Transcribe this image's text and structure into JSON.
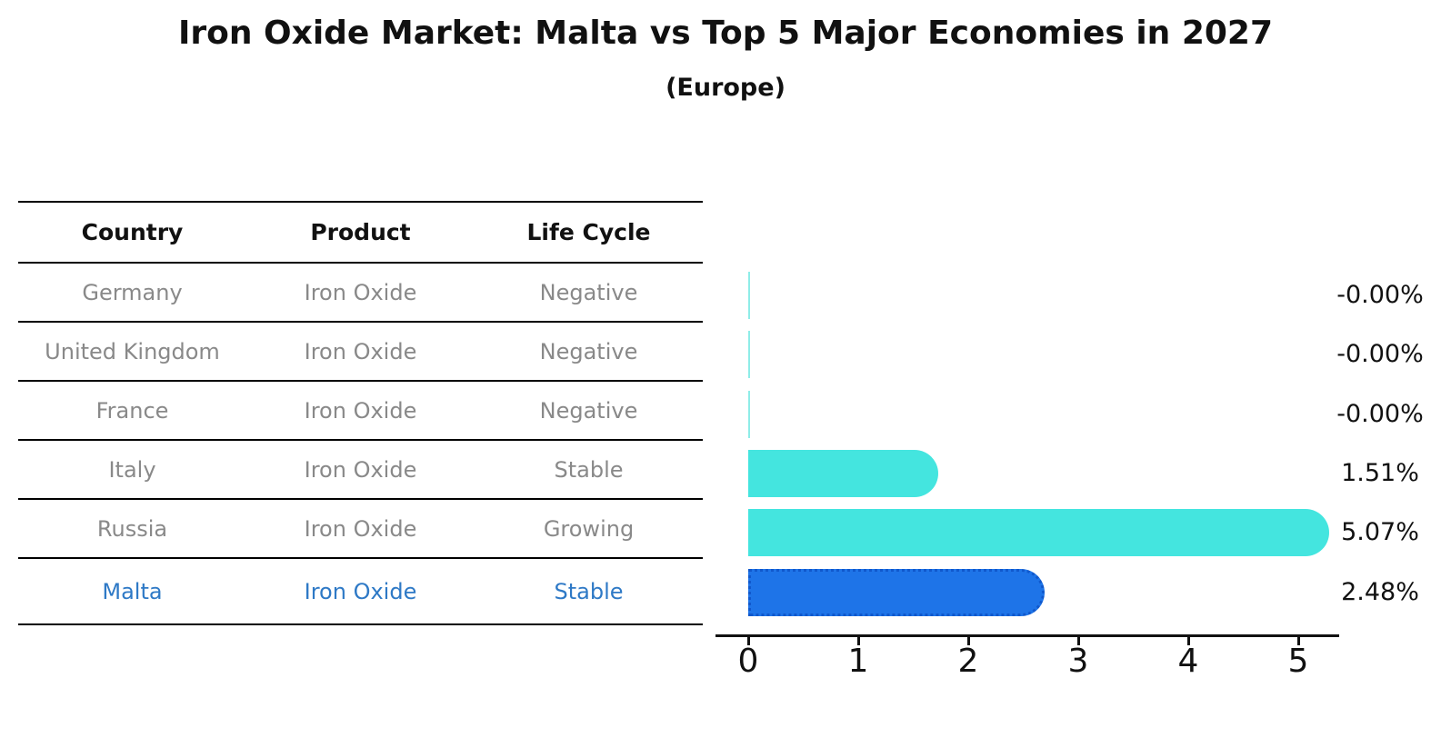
{
  "title": "Iron Oxide Market: Malta vs Top 5 Major Economies in 2027",
  "subtitle": "(Europe)",
  "table": {
    "headers": [
      "Country",
      "Product",
      "Life Cycle"
    ],
    "rows": [
      {
        "country": "Germany",
        "product": "Iron Oxide",
        "life_cycle": "Negative",
        "highlight": false
      },
      {
        "country": "United Kingdom",
        "product": "Iron Oxide",
        "life_cycle": "Negative",
        "highlight": false
      },
      {
        "country": "France",
        "product": "Iron Oxide",
        "life_cycle": "Negative",
        "highlight": false
      },
      {
        "country": "Italy",
        "product": "Iron Oxide",
        "life_cycle": "Stable",
        "highlight": false
      },
      {
        "country": "Russia",
        "product": "Iron Oxide",
        "life_cycle": "Growing",
        "highlight": false
      },
      {
        "country": "Malta",
        "product": "Iron Oxide",
        "life_cycle": "Stable",
        "highlight": true
      }
    ]
  },
  "chart_data": {
    "type": "bar",
    "orientation": "horizontal",
    "title": "Iron Oxide Market: Malta vs Top 5 Major Economies in 2027",
    "subtitle": "(Europe)",
    "categories": [
      "Germany",
      "United Kingdom",
      "France",
      "Italy",
      "Russia",
      "Malta"
    ],
    "values": [
      -0.0,
      -0.0,
      -0.0,
      1.51,
      5.07,
      2.48
    ],
    "value_labels": [
      "-0.00%",
      "-0.00%",
      "-0.00%",
      "1.51%",
      "5.07%",
      "2.48%"
    ],
    "highlight_index": 5,
    "xticks": [
      0,
      1,
      2,
      3,
      4,
      5
    ],
    "xlim": [
      -0.3,
      5.37
    ],
    "grid": false,
    "legend": "none",
    "colors": {
      "bar": "#44E5DF",
      "bar_sliver": "#8FEDE8",
      "highlight_fill": "#1E74E8",
      "highlight_border": "#1058CC",
      "axis": "#111111",
      "text": "#111111",
      "muted_text": "#898989",
      "highlight_text": "#2E79C6"
    }
  }
}
